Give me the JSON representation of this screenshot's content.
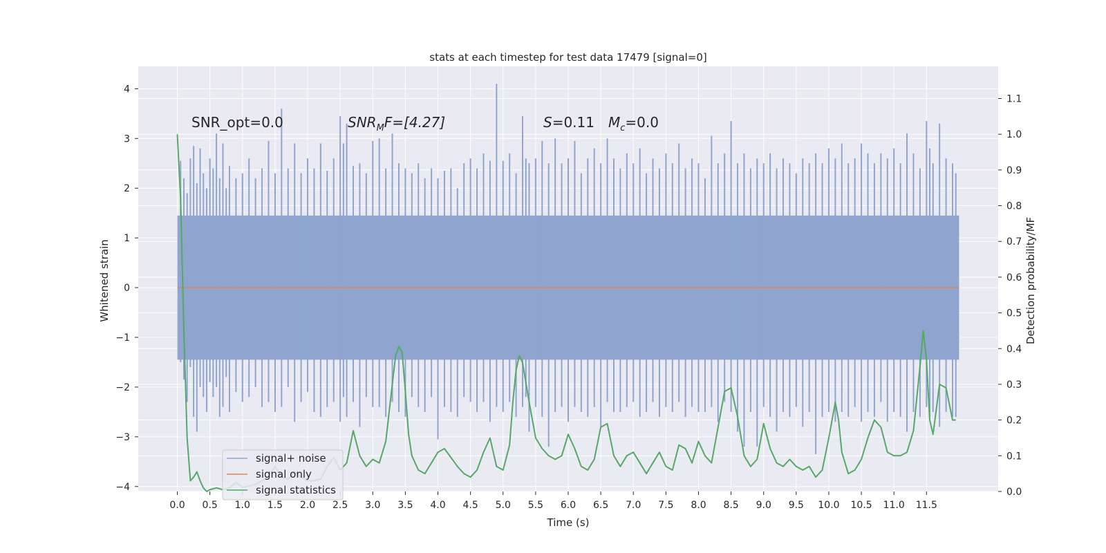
{
  "chart_data": {
    "type": "line",
    "title": "stats at each timestep for test data 17479 [signal=0]",
    "xlabel": "Time (s)",
    "ylabel": "Whitened strain",
    "y2label": "Detection probability/MF",
    "xlim": [
      -0.6,
      12.6
    ],
    "ylim": [
      -4.1,
      4.45
    ],
    "y2lim": [
      -0.0,
      1.19
    ],
    "x_ticks": [
      0.0,
      0.5,
      1.0,
      1.5,
      2.0,
      2.5,
      3.0,
      3.5,
      4.0,
      4.5,
      5.0,
      5.5,
      6.0,
      6.5,
      7.0,
      7.5,
      8.0,
      8.5,
      9.0,
      9.5,
      10.0,
      10.5,
      11.0,
      11.5
    ],
    "x_tick_labels": [
      "0.0",
      "0.5",
      "1.0",
      "1.5",
      "2.0",
      "2.5",
      "3.0",
      "3.5",
      "4.0",
      "4.5",
      "5.0",
      "5.5",
      "6.0",
      "6.5",
      "7.0",
      "7.5",
      "8.0",
      "8.5",
      "9.0",
      "9.5",
      "10.0",
      "10.5",
      "11.0",
      "11.5"
    ],
    "y_ticks": [
      4,
      3,
      2,
      1,
      0,
      -1,
      -2,
      -3,
      -4
    ],
    "y_tick_labels": [
      "4",
      "3",
      "2",
      "1",
      "0",
      "−1",
      "−2",
      "−3",
      "−4"
    ],
    "y2_ticks": [
      1.1,
      1.0,
      0.9,
      0.8,
      0.7,
      0.6,
      0.5,
      0.4,
      0.3,
      0.2,
      0.1,
      0.0
    ],
    "y2_tick_labels": [
      "1.1",
      "1.0",
      "0.9",
      "0.8",
      "0.7",
      "0.6",
      "0.5",
      "0.4",
      "0.3",
      "0.2",
      "0.1",
      "0.0"
    ],
    "grid": true,
    "legend_position": "lower-left",
    "annotations": {
      "snr_opt": "SNR_opt=0.0",
      "snr_mf_name": "SNR",
      "snr_mf_sub": "M",
      "snr_mf_rest": "F=[4.27]",
      "s_name": "S",
      "s_rest": "=0.11",
      "mc_name": "M",
      "mc_sub": "c",
      "mc_rest": "=0.0"
    },
    "series": [
      {
        "name": "signal+ noise",
        "color": "#8fa5cf",
        "axis": "left",
        "x_range": [
          0.0,
          12.0
        ],
        "core_band": [
          -1.45,
          1.45
        ],
        "spikes": [
          [
            0.05,
            2.55,
            -1.5
          ],
          [
            0.1,
            2.2,
            -1.85
          ],
          [
            0.15,
            1.9,
            -2.3
          ],
          [
            0.2,
            2.6,
            -1.6
          ],
          [
            0.25,
            2.85,
            -2.6
          ],
          [
            0.3,
            2.1,
            -2.9
          ],
          [
            0.35,
            2.8,
            -2.0
          ],
          [
            0.4,
            2.3,
            -2.2
          ],
          [
            0.45,
            2.0,
            -2.5
          ],
          [
            0.5,
            2.6,
            -1.9
          ],
          [
            0.55,
            2.4,
            -2.2
          ],
          [
            0.6,
            3.1,
            -2.0
          ],
          [
            0.65,
            2.2,
            -2.6
          ],
          [
            0.7,
            2.9,
            -2.4
          ],
          [
            0.75,
            2.0,
            -1.8
          ],
          [
            0.8,
            2.45,
            -2.5
          ],
          [
            0.9,
            2.2,
            -2.1
          ],
          [
            1.0,
            2.3,
            -2.3
          ],
          [
            1.1,
            2.6,
            -2.2
          ],
          [
            1.2,
            2.2,
            -2.0
          ],
          [
            1.3,
            2.4,
            -2.4
          ],
          [
            1.4,
            2.95,
            -2.3
          ],
          [
            1.5,
            2.3,
            -2.5
          ],
          [
            1.6,
            3.6,
            -2.4
          ],
          [
            1.7,
            2.4,
            -2.0
          ],
          [
            1.8,
            2.9,
            -2.7
          ],
          [
            1.9,
            2.3,
            -2.3
          ],
          [
            2.0,
            2.6,
            -2.1
          ],
          [
            2.1,
            2.4,
            -2.5
          ],
          [
            2.2,
            2.9,
            -2.6
          ],
          [
            2.3,
            2.35,
            -2.4
          ],
          [
            2.4,
            2.6,
            -2.3
          ],
          [
            2.5,
            3.45,
            -2.7
          ],
          [
            2.55,
            2.9,
            -2.2
          ],
          [
            2.6,
            3.3,
            -2.6
          ],
          [
            2.7,
            2.45,
            -2.3
          ],
          [
            2.8,
            2.5,
            -2.8
          ],
          [
            2.9,
            2.3,
            -2.2
          ],
          [
            3.0,
            2.95,
            -2.4
          ],
          [
            3.1,
            3.0,
            -2.4
          ],
          [
            3.2,
            2.4,
            -2.6
          ],
          [
            3.3,
            3.1,
            -2.3
          ],
          [
            3.4,
            2.5,
            -2.5
          ],
          [
            3.5,
            2.4,
            -2.6
          ],
          [
            3.6,
            2.3,
            -2.2
          ],
          [
            3.7,
            2.5,
            -2.4
          ],
          [
            3.8,
            2.2,
            -2.5
          ],
          [
            3.9,
            2.4,
            -2.2
          ],
          [
            4.0,
            2.2,
            -3.05
          ],
          [
            4.1,
            2.35,
            -2.4
          ],
          [
            4.2,
            2.4,
            -2.5
          ],
          [
            4.3,
            2.0,
            -2.6
          ],
          [
            4.4,
            2.5,
            -2.2
          ],
          [
            4.5,
            2.6,
            -2.3
          ],
          [
            4.6,
            2.4,
            -2.5
          ],
          [
            4.7,
            2.7,
            -2.3
          ],
          [
            4.8,
            2.55,
            -2.7
          ],
          [
            4.9,
            4.1,
            -2.4
          ],
          [
            5.0,
            2.55,
            -2.5
          ],
          [
            5.1,
            2.7,
            -2.3
          ],
          [
            5.2,
            2.3,
            -2.6
          ],
          [
            5.3,
            3.45,
            -2.4
          ],
          [
            5.35,
            2.6,
            -2.2
          ],
          [
            5.4,
            2.5,
            -2.9
          ],
          [
            5.5,
            2.6,
            -2.4
          ],
          [
            5.6,
            2.95,
            -2.6
          ],
          [
            5.7,
            2.5,
            -3.2
          ],
          [
            5.8,
            3.0,
            -2.5
          ],
          [
            5.9,
            2.5,
            -2.4
          ],
          [
            6.0,
            2.6,
            -2.7
          ],
          [
            6.1,
            2.95,
            -2.4
          ],
          [
            6.2,
            2.3,
            -2.5
          ],
          [
            6.3,
            2.6,
            -2.6
          ],
          [
            6.4,
            2.8,
            -2.4
          ],
          [
            6.5,
            2.5,
            -2.8
          ],
          [
            6.6,
            3.0,
            -2.3
          ],
          [
            6.7,
            2.6,
            -2.5
          ],
          [
            6.8,
            2.4,
            -2.5
          ],
          [
            6.9,
            2.7,
            -2.4
          ],
          [
            7.0,
            2.5,
            -2.3
          ],
          [
            7.1,
            2.8,
            -2.6
          ],
          [
            7.2,
            2.3,
            -2.5
          ],
          [
            7.3,
            2.6,
            -2.3
          ],
          [
            7.4,
            2.4,
            -2.6
          ],
          [
            7.5,
            2.7,
            -2.4
          ],
          [
            7.6,
            2.5,
            -2.5
          ],
          [
            7.7,
            2.9,
            -2.3
          ],
          [
            7.8,
            2.4,
            -2.6
          ],
          [
            7.9,
            2.6,
            -2.4
          ],
          [
            8.0,
            2.5,
            -2.5
          ],
          [
            8.1,
            2.2,
            -2.5
          ],
          [
            8.2,
            3.05,
            -2.4
          ],
          [
            8.3,
            2.5,
            -2.7
          ],
          [
            8.4,
            2.7,
            -2.3
          ],
          [
            8.5,
            3.35,
            -2.5
          ],
          [
            8.6,
            2.5,
            -2.9
          ],
          [
            8.7,
            2.7,
            -3.2
          ],
          [
            8.8,
            2.4,
            -2.5
          ],
          [
            8.9,
            2.6,
            -3.2
          ],
          [
            9.0,
            2.5,
            -2.4
          ],
          [
            9.1,
            2.7,
            -2.6
          ],
          [
            9.2,
            2.4,
            -2.9
          ],
          [
            9.3,
            2.6,
            -2.5
          ],
          [
            9.4,
            2.5,
            -2.6
          ],
          [
            9.5,
            2.3,
            -2.4
          ],
          [
            9.6,
            2.6,
            -2.8
          ],
          [
            9.7,
            2.5,
            -2.5
          ],
          [
            9.8,
            2.7,
            -3.35
          ],
          [
            9.9,
            2.5,
            -2.6
          ],
          [
            10.0,
            2.8,
            -2.5
          ],
          [
            10.1,
            2.6,
            -2.7
          ],
          [
            10.2,
            2.9,
            -2.5
          ],
          [
            10.3,
            2.5,
            -2.6
          ],
          [
            10.4,
            2.6,
            -2.4
          ],
          [
            10.5,
            2.9,
            -2.7
          ],
          [
            10.6,
            2.7,
            -2.5
          ],
          [
            10.7,
            2.5,
            -2.6
          ],
          [
            10.8,
            2.7,
            -2.3
          ],
          [
            10.9,
            2.6,
            -2.7
          ],
          [
            11.0,
            2.8,
            -2.5
          ],
          [
            11.1,
            2.5,
            -2.6
          ],
          [
            11.2,
            3.1,
            -2.9
          ],
          [
            11.3,
            2.7,
            -2.5
          ],
          [
            11.4,
            2.4,
            -2.6
          ],
          [
            11.5,
            3.35,
            -2.4
          ],
          [
            11.55,
            2.8,
            -2.6
          ],
          [
            11.6,
            2.5,
            -2.5
          ],
          [
            11.7,
            3.3,
            -2.8
          ],
          [
            11.8,
            2.6,
            -2.5
          ],
          [
            11.9,
            2.5,
            -2.6
          ],
          [
            11.95,
            2.3,
            -2.6
          ]
        ]
      },
      {
        "name": "signal only",
        "color": "#dd8452",
        "axis": "left",
        "x": [
          0.0,
          12.0
        ],
        "y": [
          0.0,
          0.0
        ]
      },
      {
        "name": "signal statistics",
        "color": "#55a868",
        "axis": "right",
        "x": [
          0.0,
          0.05,
          0.1,
          0.15,
          0.2,
          0.25,
          0.3,
          0.35,
          0.4,
          0.45,
          0.5,
          0.6,
          0.7,
          0.8,
          0.9,
          1.0,
          1.1,
          1.2,
          1.3,
          1.4,
          1.5,
          1.6,
          1.7,
          1.8,
          1.9,
          2.0,
          2.1,
          2.2,
          2.3,
          2.4,
          2.5,
          2.6,
          2.7,
          2.8,
          2.9,
          3.0,
          3.1,
          3.2,
          3.3,
          3.35,
          3.4,
          3.45,
          3.5,
          3.55,
          3.6,
          3.7,
          3.8,
          3.9,
          4.0,
          4.1,
          4.2,
          4.3,
          4.4,
          4.5,
          4.6,
          4.7,
          4.8,
          4.9,
          5.0,
          5.1,
          5.15,
          5.2,
          5.25,
          5.3,
          5.4,
          5.5,
          5.6,
          5.7,
          5.8,
          5.9,
          6.0,
          6.1,
          6.2,
          6.3,
          6.4,
          6.5,
          6.6,
          6.7,
          6.8,
          6.9,
          7.0,
          7.1,
          7.2,
          7.3,
          7.4,
          7.5,
          7.6,
          7.7,
          7.8,
          7.9,
          8.0,
          8.1,
          8.2,
          8.3,
          8.4,
          8.5,
          8.6,
          8.7,
          8.8,
          8.9,
          9.0,
          9.1,
          9.2,
          9.3,
          9.4,
          9.5,
          9.6,
          9.7,
          9.8,
          9.9,
          10.0,
          10.1,
          10.15,
          10.2,
          10.3,
          10.4,
          10.5,
          10.6,
          10.7,
          10.8,
          10.9,
          11.0,
          11.1,
          11.2,
          11.3,
          11.4,
          11.45,
          11.5,
          11.55,
          11.6,
          11.7,
          11.8,
          11.9,
          11.95
        ],
        "y": [
          1.0,
          0.82,
          0.45,
          0.15,
          0.03,
          0.04,
          0.055,
          0.03,
          0.01,
          0.0,
          0.005,
          0.01,
          0.005,
          0.01,
          0.025,
          0.012,
          0.015,
          0.02,
          0.03,
          0.042,
          0.07,
          0.04,
          0.035,
          0.055,
          0.04,
          0.03,
          0.03,
          0.035,
          0.07,
          0.095,
          0.06,
          0.08,
          0.17,
          0.1,
          0.07,
          0.09,
          0.08,
          0.14,
          0.3,
          0.38,
          0.405,
          0.39,
          0.28,
          0.16,
          0.1,
          0.06,
          0.05,
          0.08,
          0.11,
          0.12,
          0.095,
          0.07,
          0.05,
          0.04,
          0.06,
          0.11,
          0.15,
          0.07,
          0.06,
          0.13,
          0.25,
          0.34,
          0.38,
          0.36,
          0.25,
          0.15,
          0.12,
          0.1,
          0.09,
          0.1,
          0.16,
          0.12,
          0.07,
          0.06,
          0.09,
          0.18,
          0.19,
          0.1,
          0.07,
          0.1,
          0.11,
          0.08,
          0.05,
          0.08,
          0.11,
          0.07,
          0.06,
          0.13,
          0.12,
          0.08,
          0.14,
          0.1,
          0.08,
          0.18,
          0.28,
          0.29,
          0.21,
          0.1,
          0.07,
          0.09,
          0.19,
          0.12,
          0.08,
          0.07,
          0.09,
          0.07,
          0.06,
          0.07,
          0.04,
          0.06,
          0.15,
          0.25,
          0.2,
          0.11,
          0.05,
          0.06,
          0.09,
          0.15,
          0.2,
          0.18,
          0.11,
          0.1,
          0.1,
          0.11,
          0.17,
          0.35,
          0.45,
          0.37,
          0.2,
          0.16,
          0.3,
          0.29,
          0.2,
          0.2
        ]
      }
    ]
  }
}
